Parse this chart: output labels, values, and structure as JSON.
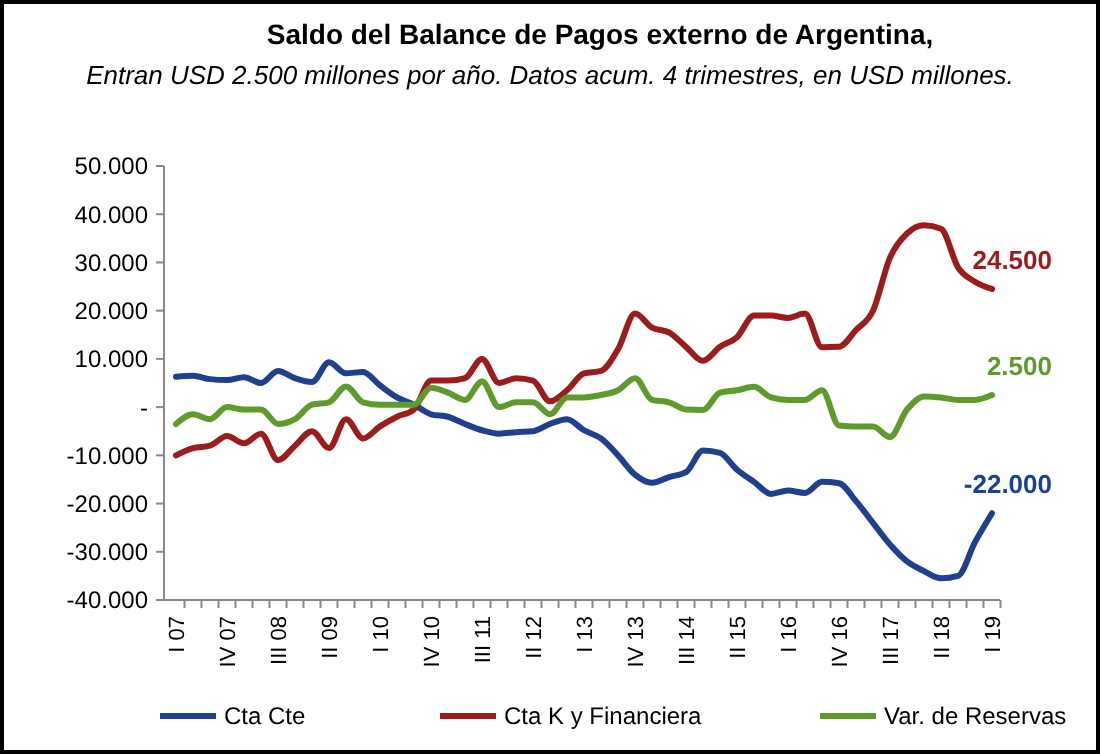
{
  "chart_data": {
    "type": "line",
    "title": "Saldo del Balance de Pagos externo de Argentina,",
    "subtitle": "Entran USD 2.500 millones por año. Datos acum. 4 trimestres, en USD millones.",
    "categories": [
      "I 07",
      null,
      null,
      "IV 07",
      null,
      null,
      "III 08",
      null,
      null,
      "II 09",
      null,
      null,
      "I 10",
      null,
      null,
      "IV 10",
      null,
      null,
      "III 11",
      null,
      null,
      "II 12",
      null,
      null,
      "I 13",
      null,
      null,
      "IV 13",
      null,
      null,
      "III 14",
      null,
      null,
      "II 15",
      null,
      null,
      "I 16",
      null,
      null,
      "IV 16",
      null,
      null,
      "III 17",
      null,
      null,
      "II 18",
      null,
      null,
      "I 19"
    ],
    "series": [
      {
        "name": "Cta Cte",
        "color": "#1f3f8f",
        "values": [
          6300,
          6500,
          5800,
          5600,
          6200,
          5000,
          7500,
          6000,
          5200,
          9300,
          7000,
          7300,
          4500,
          2000,
          500,
          -1500,
          -2000,
          -3500,
          -4800,
          -5500,
          -5200,
          -5000,
          -3500,
          -2500,
          -4800,
          -6500,
          -10000,
          -14000,
          -15700,
          -14500,
          -13500,
          -9000,
          -9500,
          -13000,
          -15500,
          -18000,
          -17300,
          -17800,
          -15500,
          -15800,
          -19500,
          -24000,
          -28500,
          -32000,
          -34000,
          -35500,
          -35000,
          -28000,
          -22000
        ]
      },
      {
        "name": "Cta K y Financiera",
        "color": "#9b1c1c",
        "values": [
          -10000,
          -8500,
          -8000,
          -6000,
          -7500,
          -5500,
          -11000,
          -8000,
          -5000,
          -8500,
          -2500,
          -6500,
          -4000,
          -2000,
          -500,
          5500,
          5500,
          6000,
          10000,
          5000,
          6000,
          5500,
          1200,
          3500,
          7000,
          7500,
          12000,
          19400,
          16500,
          15500,
          12500,
          9600,
          12500,
          14500,
          19000,
          19000,
          18500,
          19400,
          12400,
          12500,
          16000,
          20000,
          31000,
          36000,
          37700,
          37000,
          29000,
          26000,
          24500
        ]
      },
      {
        "name": "Var. de Reservas",
        "color": "#5e9a2c",
        "values": [
          -3500,
          -1500,
          -2500,
          0,
          -500,
          -500,
          -3500,
          -2500,
          500,
          1000,
          4300,
          1000,
          500,
          500,
          500,
          4000,
          3000,
          1500,
          5300,
          0,
          1000,
          1000,
          -1500,
          2000,
          2000,
          2500,
          3500,
          6000,
          1500,
          1000,
          -500,
          -600,
          3000,
          3500,
          4200,
          2000,
          1500,
          1500,
          3500,
          -3800,
          -4000,
          -4000,
          -6200,
          -500,
          2200,
          2000,
          1500,
          1500,
          2500
        ]
      }
    ],
    "annotations": [
      {
        "text": "-22.000",
        "x": "I 19",
        "y": -22000
      },
      {
        "text": "24.500",
        "x": "I 19",
        "y": 24500
      },
      {
        "text": "2.500",
        "x": "I 19",
        "y": 2500
      }
    ],
    "ylim": [
      -40000,
      50000
    ],
    "yticks": [
      {
        "value": -40000,
        "label": "-40.000"
      },
      {
        "value": -30000,
        "label": "-30.000"
      },
      {
        "value": -20000,
        "label": "-20.000"
      },
      {
        "value": -10000,
        "label": "-10.000"
      },
      {
        "value": 0,
        "label": "-"
      },
      {
        "value": 10000,
        "label": "10.000"
      },
      {
        "value": 20000,
        "label": "20.000"
      },
      {
        "value": 30000,
        "label": "30.000"
      },
      {
        "value": 40000,
        "label": "40.000"
      },
      {
        "value": 50000,
        "label": "50.000"
      }
    ],
    "grid": false,
    "legend": "bottom",
    "marker": "none",
    "line_style": "solid"
  }
}
